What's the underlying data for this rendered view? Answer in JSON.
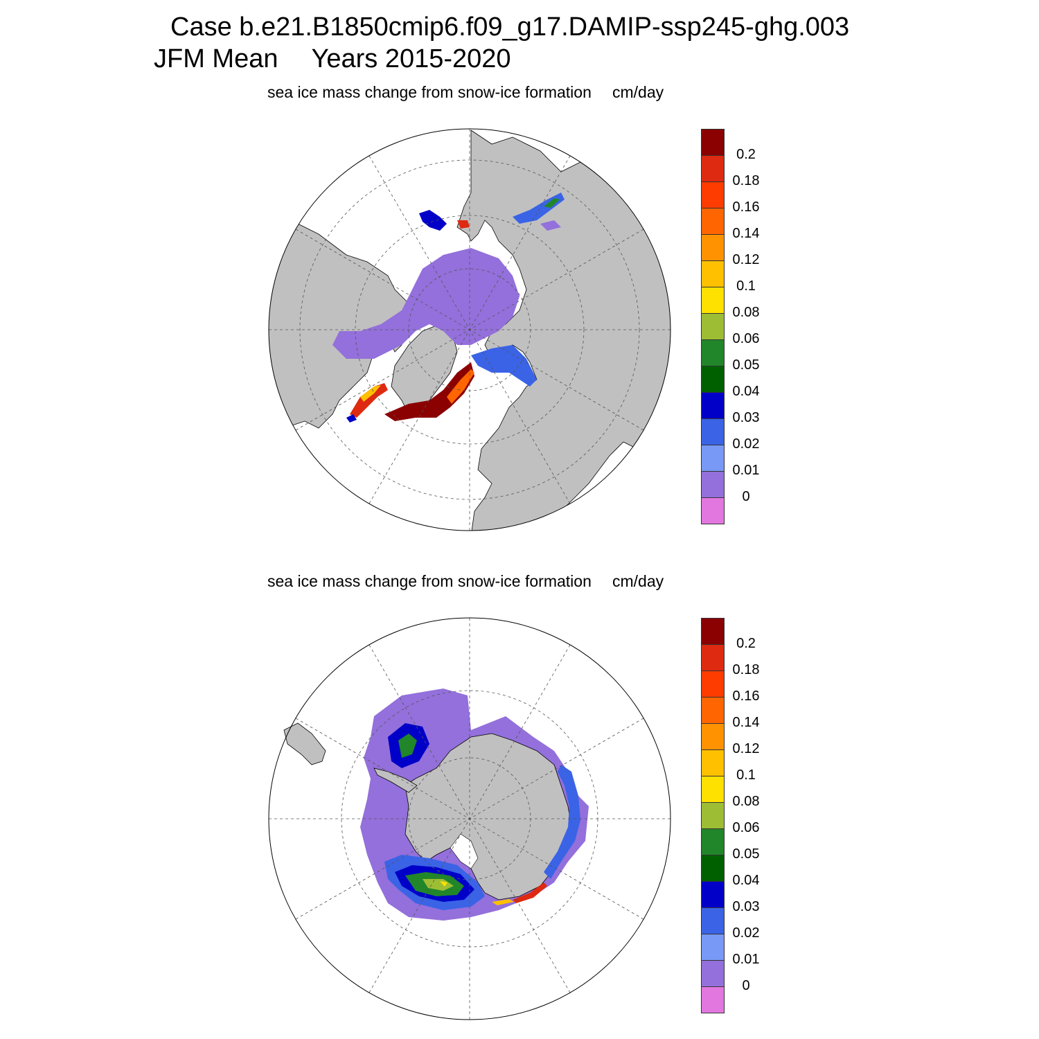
{
  "header": {
    "line1": "Case b.e21.B1850cmip6.f09_g17.DAMIP-ssp245-ghg.003",
    "season": "JFM Mean",
    "years": "Years 2015-2020"
  },
  "panels": [
    {
      "hemisphere": "north",
      "title": "sea ice mass change from snow-ice formation",
      "units": "cm/day",
      "colorbar_labels": [
        "0.2",
        "0.18",
        "0.16",
        "0.14",
        "0.12",
        "0.1",
        "0.08",
        "0.06",
        "0.05",
        "0.04",
        "0.03",
        "0.02",
        "0.01",
        "0"
      ]
    },
    {
      "hemisphere": "south",
      "title": "sea ice mass change from snow-ice formation",
      "units": "cm/day",
      "colorbar_labels": [
        "0.2",
        "0.18",
        "0.16",
        "0.14",
        "0.12",
        "0.1",
        "0.08",
        "0.06",
        "0.05",
        "0.04",
        "0.03",
        "0.02",
        "0.01",
        "0"
      ]
    }
  ],
  "colorbar_colors": [
    "#8b0000",
    "#dd2a10",
    "#ff3c00",
    "#ff6500",
    "#ff9200",
    "#ffc000",
    "#ffe100",
    "#9dbe34",
    "#21862a",
    "#006000",
    "#0000c8",
    "#3a63e6",
    "#7899f5",
    "#9370db",
    "#e377e0"
  ],
  "colors": {
    "land": "#c0c0c0",
    "ocean": "#ffffff"
  }
}
